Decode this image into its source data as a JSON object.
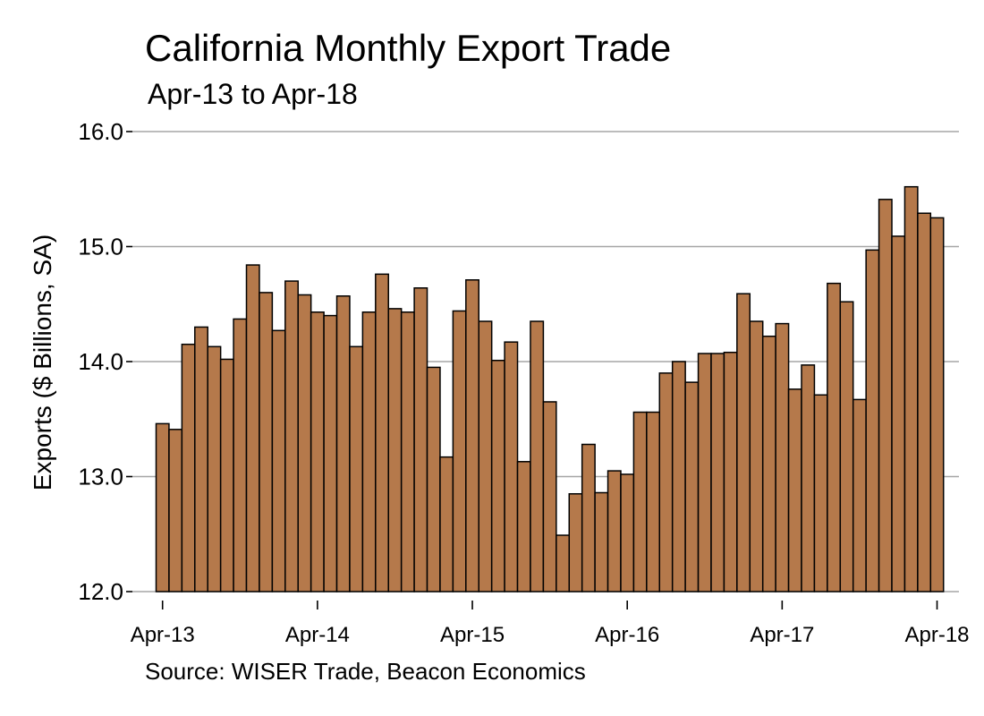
{
  "chart_data": {
    "type": "bar",
    "title": "California Monthly Export Trade",
    "subtitle": "Apr-13 to Apr-18",
    "ylabel": "Exports ($ Billions, SA)",
    "source": "Source: WISER Trade, Beacon Economics",
    "ylim": [
      12.0,
      16.0
    ],
    "y_ticks": [
      "12.0",
      "13.0",
      "14.0",
      "15.0",
      "16.0"
    ],
    "x_tick_labels": [
      {
        "label": "Apr-13",
        "index": 0
      },
      {
        "label": "Apr-14",
        "index": 12
      },
      {
        "label": "Apr-15",
        "index": 24
      },
      {
        "label": "Apr-16",
        "index": 36
      },
      {
        "label": "Apr-17",
        "index": 48
      },
      {
        "label": "Apr-18",
        "index": 60
      }
    ],
    "grid": true,
    "bar_color": "#b5794b",
    "values": [
      13.46,
      13.41,
      14.15,
      14.3,
      14.13,
      14.02,
      14.37,
      14.84,
      14.6,
      14.27,
      14.7,
      14.58,
      14.43,
      14.4,
      14.57,
      14.13,
      14.43,
      14.76,
      14.46,
      14.43,
      14.64,
      13.95,
      13.17,
      14.44,
      14.71,
      14.35,
      14.01,
      14.17,
      13.13,
      14.35,
      13.65,
      12.49,
      12.85,
      13.28,
      12.86,
      13.05,
      13.02,
      13.56,
      13.56,
      13.9,
      14.0,
      13.82,
      14.07,
      14.07,
      14.08,
      14.59,
      14.35,
      14.22,
      14.33,
      13.76,
      13.97,
      13.71,
      14.68,
      14.52,
      13.67,
      14.97,
      15.41,
      15.09,
      15.52,
      15.29,
      15.25
    ]
  }
}
